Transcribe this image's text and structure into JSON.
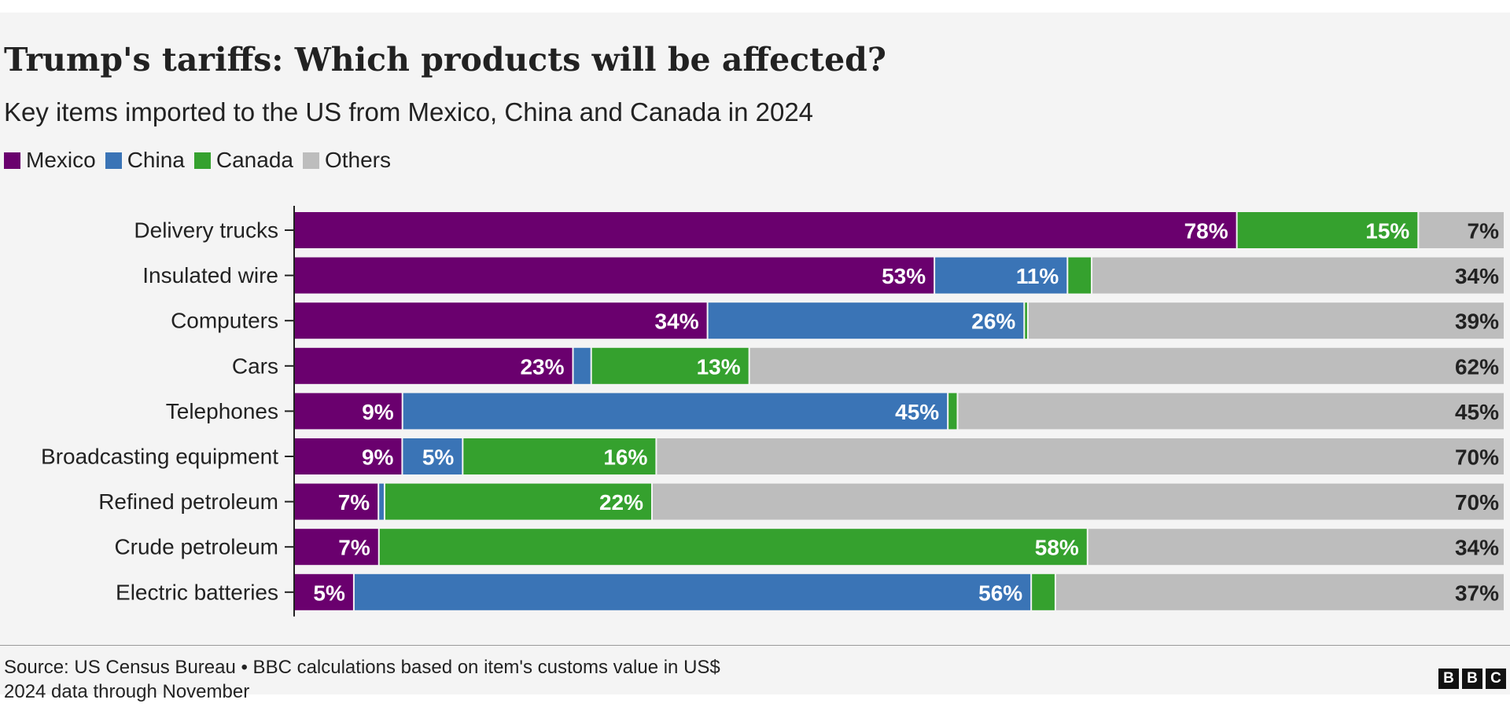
{
  "title": "Trump's tariffs: Which products will be affected?",
  "subtitle": "Key items imported to the US from Mexico, China and Canada in 2024",
  "colors": {
    "mexico": "#6a006e",
    "china": "#3a74b6",
    "canada": "#35a12e",
    "others": "#bdbdbd",
    "text": "#222222"
  },
  "footer": {
    "source": "Source: US Census Bureau • BBC calculations based on item's customs value in US$",
    "note": "2024 data through November",
    "logo_letters": [
      "B",
      "B",
      "C"
    ]
  },
  "chart_data": {
    "type": "bar",
    "orientation": "horizontal",
    "stacked": true,
    "unit": "%",
    "xlim": [
      0,
      100
    ],
    "legend_position": "top-left",
    "series": [
      {
        "name": "Mexico",
        "key": "mexico",
        "values": [
          78,
          53,
          34,
          23,
          9,
          9,
          7,
          7,
          5
        ]
      },
      {
        "name": "China",
        "key": "china",
        "values": [
          0,
          11,
          26,
          1.5,
          45,
          5,
          0.5,
          0,
          56
        ]
      },
      {
        "name": "Canada",
        "key": "canada",
        "values": [
          15,
          2,
          0.3,
          13,
          0.8,
          16,
          22,
          58,
          2
        ]
      },
      {
        "name": "Others",
        "key": "others",
        "values": [
          7,
          34,
          39,
          62,
          45,
          70,
          70,
          34,
          37
        ]
      }
    ],
    "categories": [
      "Delivery trucks",
      "Insulated wire",
      "Computers",
      "Cars",
      "Telephones",
      "Broadcasting equipment",
      "Refined petroleum",
      "Crude petroleum",
      "Electric batteries"
    ],
    "data_labels": [
      {
        "mexico": "78%",
        "china": "",
        "canada": "15%",
        "others": "7%"
      },
      {
        "mexico": "53%",
        "china": "11%",
        "canada": "",
        "others": "34%"
      },
      {
        "mexico": "34%",
        "china": "26%",
        "canada": "",
        "others": "39%"
      },
      {
        "mexico": "23%",
        "china": "",
        "canada": "13%",
        "others": "62%"
      },
      {
        "mexico": "9%",
        "china": "45%",
        "canada": "",
        "others": "45%"
      },
      {
        "mexico": "9%",
        "china": "5%",
        "canada": "16%",
        "others": "70%"
      },
      {
        "mexico": "7%",
        "china": "",
        "canada": "22%",
        "others": "70%"
      },
      {
        "mexico": "7%",
        "china": "",
        "canada": "58%",
        "others": "34%"
      },
      {
        "mexico": "5%",
        "china": "56%",
        "canada": "",
        "others": "37%"
      }
    ]
  }
}
